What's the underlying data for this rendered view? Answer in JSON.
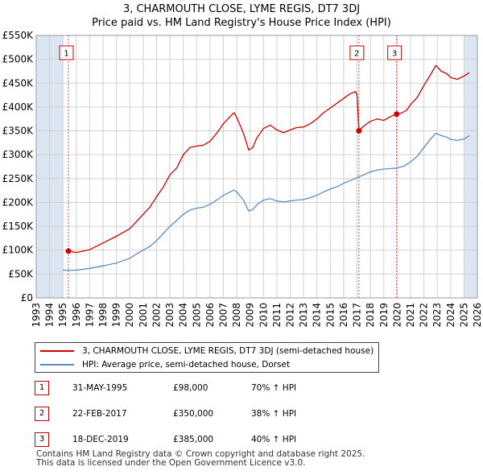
{
  "title_line1": "3, CHARMOUTH CLOSE, LYME REGIS, DT7 3DJ",
  "title_line2": "Price paid vs. HM Land Registry's House Price Index (HPI)",
  "colors": {
    "price": "#cc0000",
    "hpi": "#5b8bc5",
    "shade": "#dce6f2",
    "vline": "#dd4444"
  },
  "legend": {
    "price_label": "3, CHARMOUTH CLOSE, LYME REGIS, DT7 3DJ (semi-detached house)",
    "hpi_label": "HPI: Average price, semi-detached house, Dorset"
  },
  "sales": [
    {
      "num": "1",
      "date": "31-MAY-1995",
      "price": "£98,000",
      "hpi": "70% ↑ HPI"
    },
    {
      "num": "2",
      "date": "22-FEB-2017",
      "price": "£350,000",
      "hpi": "38% ↑ HPI"
    },
    {
      "num": "3",
      "date": "18-DEC-2019",
      "price": "£385,000",
      "hpi": "40% ↑ HPI"
    }
  ],
  "footer": {
    "line1": "Contains HM Land Registry data © Crown copyright and database right 2025.",
    "line2": "This data is licensed under the Open Government Licence v3.0."
  },
  "chart_data": {
    "type": "line",
    "title": "3, CHARMOUTH CLOSE, LYME REGIS, DT7 3DJ — Price paid vs. HM Land Registry's House Price Index (HPI)",
    "xlim": [
      1993,
      2026
    ],
    "ylim": [
      0,
      550000
    ],
    "xticks": [
      1993,
      1994,
      1995,
      1996,
      1997,
      1998,
      1999,
      2000,
      2001,
      2002,
      2003,
      2004,
      2005,
      2006,
      2007,
      2008,
      2009,
      2010,
      2011,
      2012,
      2013,
      2014,
      2015,
      2016,
      2017,
      2018,
      2019,
      2020,
      2021,
      2022,
      2023,
      2024,
      2025,
      2026
    ],
    "yticks": [
      {
        "v": 0,
        "label": "£0"
      },
      {
        "v": 50000,
        "label": "£50K"
      },
      {
        "v": 100000,
        "label": "£100K"
      },
      {
        "v": 150000,
        "label": "£150K"
      },
      {
        "v": 200000,
        "label": "£200K"
      },
      {
        "v": 250000,
        "label": "£250K"
      },
      {
        "v": 300000,
        "label": "£300K"
      },
      {
        "v": 350000,
        "label": "£350K"
      },
      {
        "v": 400000,
        "label": "£400K"
      },
      {
        "v": 450000,
        "label": "£450K"
      },
      {
        "v": 500000,
        "label": "£500K"
      },
      {
        "v": 550000,
        "label": "£550K"
      }
    ],
    "shaded_ranges": [
      [
        1993,
        1995.0
      ],
      [
        2025.0,
        2026
      ]
    ],
    "series": [
      {
        "name": "3, CHARMOUTH CLOSE, LYME REGIS, DT7 3DJ (semi-detached house)",
        "color": "#cc0000",
        "points": [
          [
            1995.41,
            98000
          ],
          [
            1996,
            95000
          ],
          [
            1997,
            101000
          ],
          [
            1998,
            115000
          ],
          [
            1999,
            129000
          ],
          [
            2000,
            145000
          ],
          [
            2000.5,
            160000
          ],
          [
            2001,
            175000
          ],
          [
            2001.5,
            190000
          ],
          [
            2002,
            212000
          ],
          [
            2002.5,
            232000
          ],
          [
            2003,
            258000
          ],
          [
            2003.5,
            272000
          ],
          [
            2004,
            300000
          ],
          [
            2004.5,
            315000
          ],
          [
            2005,
            318000
          ],
          [
            2005.5,
            320000
          ],
          [
            2006,
            328000
          ],
          [
            2006.5,
            345000
          ],
          [
            2007,
            365000
          ],
          [
            2007.5,
            380000
          ],
          [
            2007.8,
            388000
          ],
          [
            2008,
            378000
          ],
          [
            2008.5,
            345000
          ],
          [
            2008.9,
            310000
          ],
          [
            2009.2,
            315000
          ],
          [
            2009.5,
            335000
          ],
          [
            2010,
            355000
          ],
          [
            2010.5,
            362000
          ],
          [
            2011,
            352000
          ],
          [
            2011.5,
            346000
          ],
          [
            2012,
            352000
          ],
          [
            2012.5,
            357000
          ],
          [
            2013,
            358000
          ],
          [
            2013.5,
            365000
          ],
          [
            2014,
            375000
          ],
          [
            2014.5,
            388000
          ],
          [
            2015,
            398000
          ],
          [
            2015.5,
            408000
          ],
          [
            2016,
            418000
          ],
          [
            2016.5,
            428000
          ],
          [
            2016.9,
            432000
          ],
          [
            2017.0,
            425000
          ],
          [
            2017.15,
            350000
          ],
          [
            2017.5,
            360000
          ],
          [
            2018,
            370000
          ],
          [
            2018.5,
            375000
          ],
          [
            2019,
            372000
          ],
          [
            2019.5,
            380000
          ],
          [
            2019.96,
            385000
          ],
          [
            2020.3,
            387000
          ],
          [
            2020.7,
            393000
          ],
          [
            2021,
            405000
          ],
          [
            2021.5,
            420000
          ],
          [
            2022,
            445000
          ],
          [
            2022.5,
            468000
          ],
          [
            2022.9,
            487000
          ],
          [
            2023.3,
            475000
          ],
          [
            2023.7,
            470000
          ],
          [
            2024,
            462000
          ],
          [
            2024.5,
            458000
          ],
          [
            2025,
            465000
          ],
          [
            2025.4,
            472000
          ]
        ]
      },
      {
        "name": "HPI: Average price, semi-detached house, Dorset",
        "color": "#5b8bc5",
        "points": [
          [
            1995,
            58000
          ],
          [
            1996,
            58000
          ],
          [
            1997,
            62000
          ],
          [
            1998,
            67000
          ],
          [
            1999,
            73000
          ],
          [
            2000,
            83000
          ],
          [
            2000.5,
            92000
          ],
          [
            2001,
            100000
          ],
          [
            2001.5,
            108000
          ],
          [
            2002,
            120000
          ],
          [
            2002.5,
            135000
          ],
          [
            2003,
            150000
          ],
          [
            2003.5,
            162000
          ],
          [
            2004,
            175000
          ],
          [
            2004.5,
            184000
          ],
          [
            2005,
            188000
          ],
          [
            2005.5,
            190000
          ],
          [
            2006,
            196000
          ],
          [
            2006.5,
            205000
          ],
          [
            2007,
            215000
          ],
          [
            2007.5,
            222000
          ],
          [
            2007.8,
            226000
          ],
          [
            2008,
            222000
          ],
          [
            2008.5,
            205000
          ],
          [
            2008.9,
            182000
          ],
          [
            2009.2,
            185000
          ],
          [
            2009.5,
            195000
          ],
          [
            2010,
            205000
          ],
          [
            2010.5,
            208000
          ],
          [
            2011,
            203000
          ],
          [
            2011.5,
            201000
          ],
          [
            2012,
            203000
          ],
          [
            2012.5,
            205000
          ],
          [
            2013,
            206000
          ],
          [
            2013.5,
            210000
          ],
          [
            2014,
            215000
          ],
          [
            2014.5,
            222000
          ],
          [
            2015,
            228000
          ],
          [
            2015.5,
            233000
          ],
          [
            2016,
            240000
          ],
          [
            2016.5,
            246000
          ],
          [
            2017,
            252000
          ],
          [
            2017.5,
            258000
          ],
          [
            2018,
            264000
          ],
          [
            2018.5,
            268000
          ],
          [
            2019,
            270000
          ],
          [
            2019.5,
            271000
          ],
          [
            2020,
            272000
          ],
          [
            2020.5,
            276000
          ],
          [
            2021,
            285000
          ],
          [
            2021.5,
            297000
          ],
          [
            2022,
            315000
          ],
          [
            2022.5,
            333000
          ],
          [
            2022.9,
            345000
          ],
          [
            2023.3,
            340000
          ],
          [
            2023.7,
            337000
          ],
          [
            2024,
            332000
          ],
          [
            2024.5,
            330000
          ],
          [
            2025,
            333000
          ],
          [
            2025.4,
            340000
          ]
        ]
      }
    ],
    "sale_markers": [
      {
        "label": "1",
        "x": 1995.41,
        "y": 98000
      },
      {
        "label": "2",
        "x": 2017.14,
        "y": 350000
      },
      {
        "label": "3",
        "x": 2019.96,
        "y": 385000
      }
    ]
  }
}
